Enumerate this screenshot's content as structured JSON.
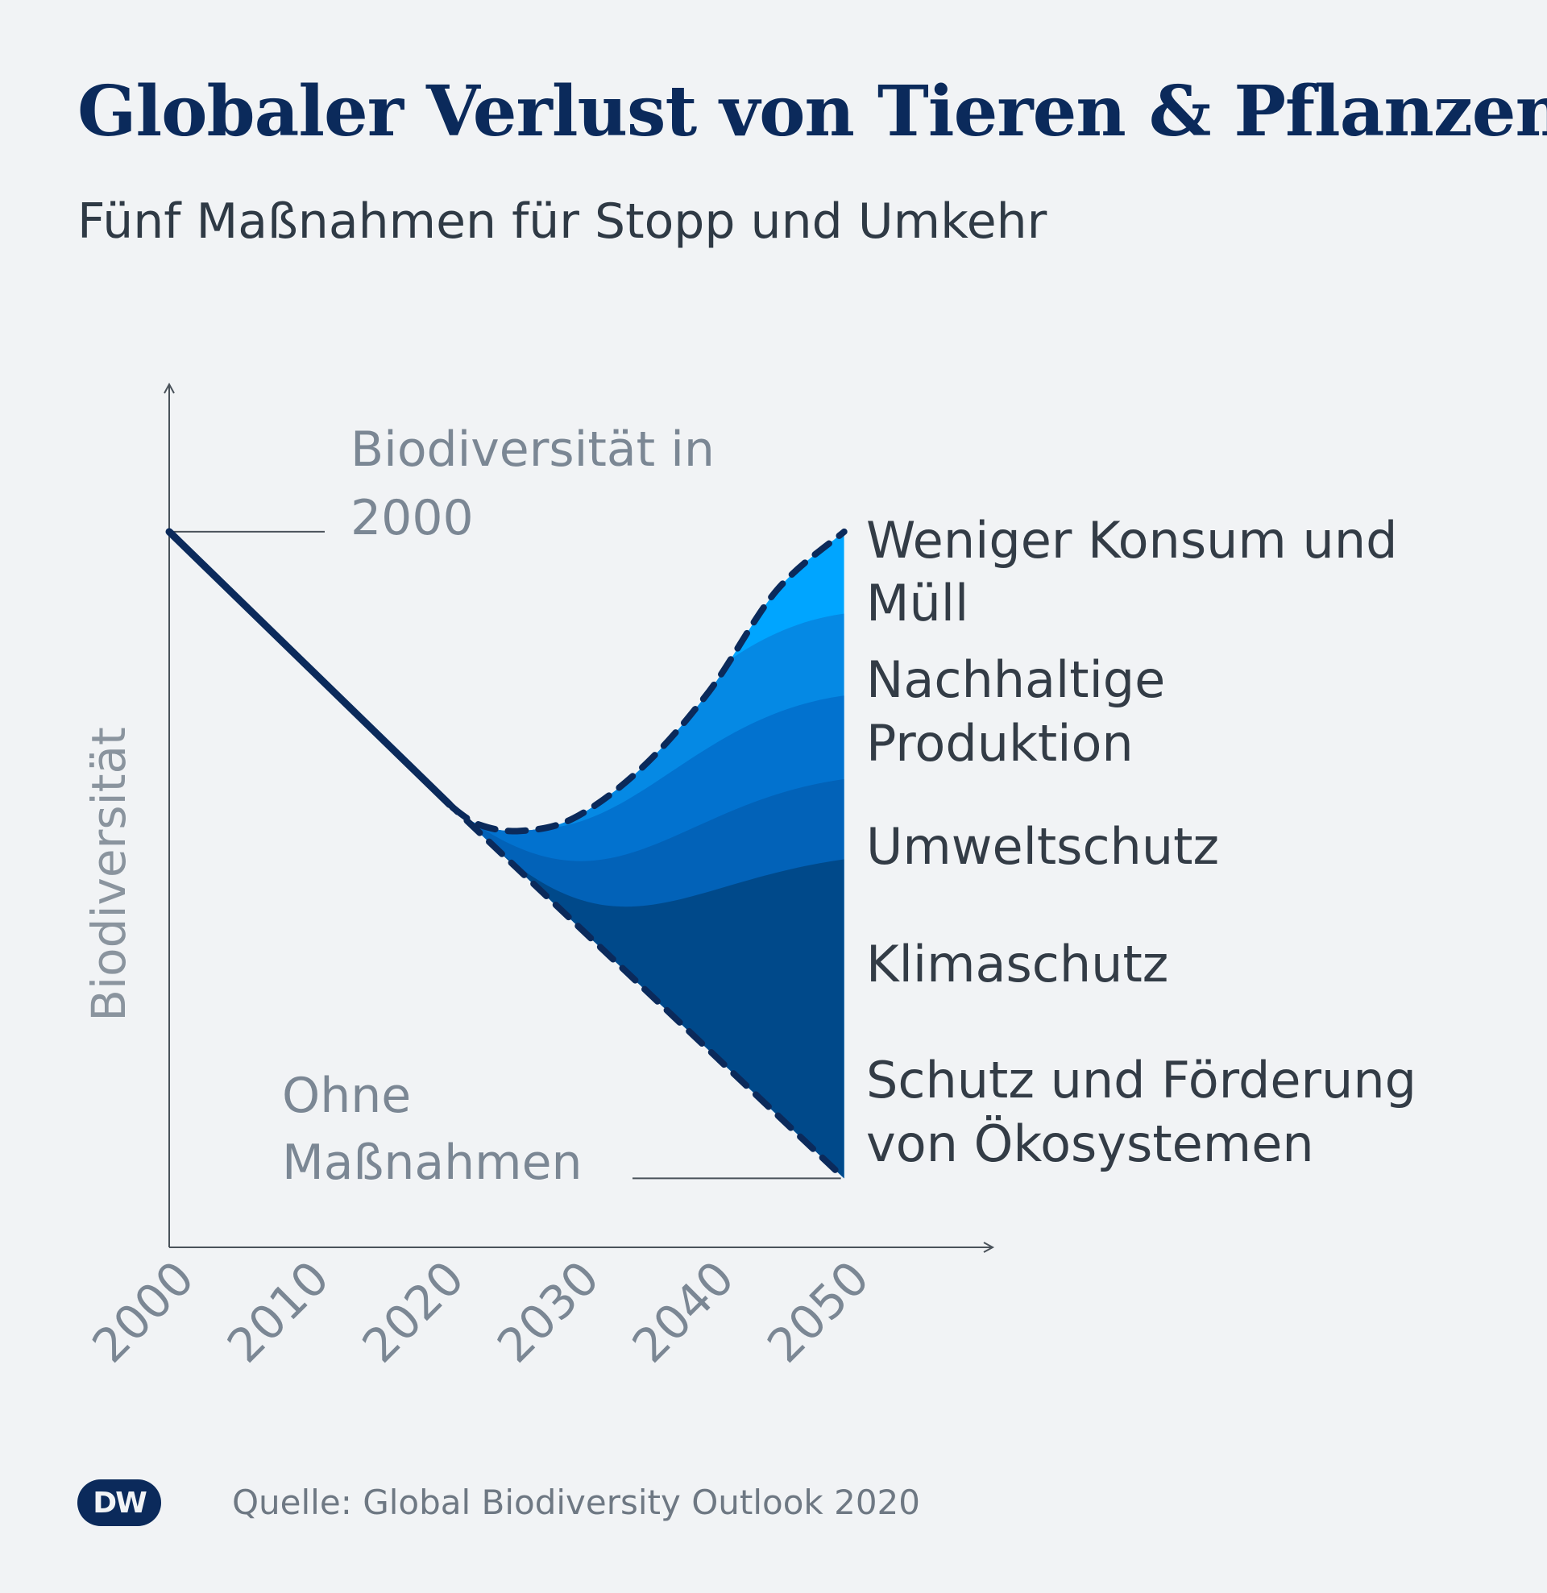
{
  "title": "Globaler Verlust von Tieren & Pflanzen",
  "subtitle": "Fünf Maßnahmen für Stopp und Umkehr",
  "source": "Quelle: Global Biodiversity Outlook 2020",
  "logo": "DW",
  "colors": {
    "line": "#0b2a5b",
    "bands": [
      "#00a5ff",
      "#0589e4",
      "#0272cf",
      "#0262b8",
      "#00498a"
    ]
  },
  "chart_data": {
    "type": "area",
    "title": "Globaler Verlust von Tieren & Pflanzen",
    "subtitle": "Fünf Maßnahmen für Stopp und Umkehr",
    "xlabel": "",
    "ylabel": "Biodiversität",
    "x_ticks": [
      "2000",
      "2010",
      "2020",
      "2030",
      "2040",
      "2050"
    ],
    "xlim": [
      2000,
      2061
    ],
    "ylim": [
      0,
      100
    ],
    "start_label": "Biodiversität in 2000",
    "baseline_label": "Ohne Maßnahmen",
    "baseline": {
      "x": [
        2000,
        2021,
        2050
      ],
      "y": [
        83,
        51,
        8
      ]
    },
    "combined": {
      "x": [
        2021,
        2023,
        2026,
        2030,
        2035,
        2040,
        2045,
        2050
      ],
      "y": [
        51,
        49,
        48.3,
        49.8,
        55.6,
        64.5,
        76.2,
        83
      ]
    },
    "bands": [
      {
        "name": "Weniger Konsum und Müll",
        "end_y": 83
      },
      {
        "name": "Nachhaltige Produktion",
        "end_y": 73.5
      },
      {
        "name": "Umweltschutz",
        "end_y": 64
      },
      {
        "name": "Klimaschutz",
        "end_y": 54.3
      },
      {
        "name": "Schutz und Förderung von Ökosystemen",
        "end_y": 45
      }
    ],
    "legend": [
      {
        "line1": "Weniger Konsum und",
        "line2": "Müll"
      },
      {
        "line1": "Nachhaltige",
        "line2": "Produktion"
      },
      {
        "line1": "Umweltschutz"
      },
      {
        "line1": "Klimaschutz"
      },
      {
        "line1": "Schutz und Förderung",
        "line2": "von Ökosystemen"
      }
    ],
    "annotations": {
      "start_line1": "Biodiversität in",
      "start_line2": "2000",
      "baseline_line1": "Ohne",
      "baseline_line2": "Maßnahmen"
    }
  }
}
